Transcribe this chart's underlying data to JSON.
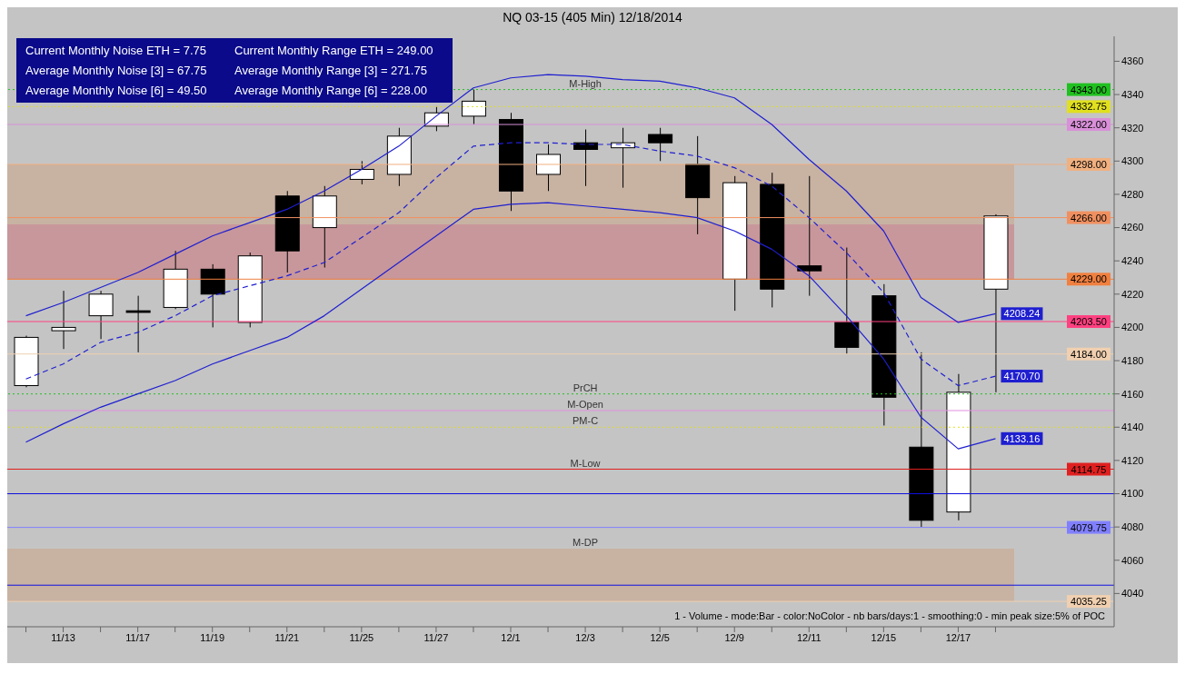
{
  "chart_data": {
    "type": "candlestick",
    "title": "NQ 03-15 (405 Min)  12/18/2014",
    "categories": [
      null,
      "11/13",
      null,
      "11/17",
      null,
      "11/19",
      null,
      "11/21",
      null,
      "11/25",
      null,
      "11/27",
      null,
      "12/1",
      null,
      "12/3",
      null,
      "12/5",
      null,
      "12/9",
      null,
      "12/11",
      null,
      "12/15",
      null,
      "12/17",
      null
    ],
    "ohlc": [
      [
        4165,
        4195,
        4164,
        4194
      ],
      [
        4198,
        4222,
        4187,
        4200
      ],
      [
        4207,
        4222,
        4193,
        4220
      ],
      [
        4210,
        4219,
        4185,
        4209
      ],
      [
        4212,
        4246,
        4211,
        4235
      ],
      [
        4235,
        4238,
        4200,
        4220
      ],
      [
        4203,
        4245,
        4200,
        4243
      ],
      [
        4279,
        4282,
        4233,
        4246
      ],
      [
        4260,
        4285,
        4236,
        4279
      ],
      [
        4289,
        4300,
        4286,
        4295
      ],
      [
        4292,
        4320,
        4285,
        4315
      ],
      [
        4321,
        4333,
        4318,
        4329
      ],
      [
        4327,
        4343,
        4322,
        4336
      ],
      [
        4325,
        4329,
        4270,
        4282
      ],
      [
        4292,
        4310,
        4282,
        4304
      ],
      [
        4311,
        4319,
        4285,
        4307
      ],
      [
        4308,
        4320,
        4284,
        4311
      ],
      [
        4316,
        4320,
        4300,
        4311
      ],
      [
        4298,
        4315,
        4256,
        4278
      ],
      [
        4229,
        4291,
        4210,
        4287
      ],
      [
        4286,
        4293,
        4212,
        4223
      ],
      [
        4237,
        4291,
        4219,
        4234
      ],
      [
        4203,
        4248,
        4184,
        4188
      ],
      [
        4219,
        4226,
        4141,
        4158
      ],
      [
        4128,
        4185,
        4080,
        4084
      ],
      [
        4089,
        4172,
        4084,
        4161
      ],
      [
        4223,
        4268,
        4161,
        4267
      ]
    ],
    "colors": [
      "#ffffff",
      "#ffffff",
      "#ffffff",
      "#000000",
      "#ffffff",
      "#000000",
      "#ffffff",
      "#000000",
      "#ffffff",
      "#ffffff",
      "#ffffff",
      "#ffffff",
      "#ffffff",
      "#000000",
      "#ffffff",
      "#000000",
      "#ffffff",
      "#000000",
      "#000000",
      "#ffffff",
      "#000000",
      "#000000",
      "#000000",
      "#000000",
      "#000000",
      "#ffffff",
      "#ffffff"
    ],
    "series": [
      {
        "type": "line",
        "color": "#1f1fd0",
        "line_style": "solid",
        "values": [
          4207,
          4215,
          4224,
          4233,
          4244,
          4255,
          4263,
          4271,
          4282,
          4295,
          4309,
          4327,
          4344,
          4350,
          4352,
          4351,
          4349,
          4348,
          4344,
          4338,
          4322,
          4301,
          4282,
          4258,
          4218,
          4203,
          4208.24
        ],
        "value_labels": [
          null,
          null,
          null,
          null,
          null,
          null,
          null,
          null,
          null,
          null,
          null,
          null,
          null,
          null,
          null,
          null,
          null,
          null,
          null,
          null,
          null,
          null,
          null,
          null,
          null,
          null,
          "4208.24"
        ]
      },
      {
        "type": "line",
        "color": "#1f1fd0",
        "line_style": "dashed",
        "values": [
          4169,
          4178,
          4191,
          4197,
          4207,
          4219,
          4225,
          4231,
          4239,
          4254,
          4269,
          4290,
          4309,
          4311,
          4311,
          4310,
          4310,
          4306,
          4303,
          4296,
          4285,
          4266,
          4245,
          4221,
          4181,
          4165,
          4170.7
        ],
        "value_labels": [
          null,
          null,
          null,
          null,
          null,
          null,
          null,
          null,
          null,
          null,
          null,
          null,
          null,
          null,
          null,
          null,
          null,
          null,
          null,
          null,
          null,
          null,
          null,
          null,
          null,
          null,
          "4170.70"
        ]
      },
      {
        "type": "line",
        "color": "#1f1fd0",
        "line_style": "solid",
        "values": [
          4131,
          4142,
          4152,
          4160,
          4168,
          4178,
          4186,
          4194,
          4207,
          4223,
          4239,
          4255,
          4271,
          4274,
          4275,
          4273,
          4271,
          4269,
          4266,
          4258,
          4247,
          4231,
          4207,
          4181,
          4146,
          4127,
          4133.16
        ],
        "value_labels": [
          null,
          null,
          null,
          null,
          null,
          null,
          null,
          null,
          null,
          null,
          null,
          null,
          null,
          null,
          null,
          null,
          null,
          null,
          null,
          null,
          null,
          null,
          null,
          null,
          null,
          null,
          "4133.16"
        ]
      }
    ],
    "ylim": [
      4020,
      4375
    ],
    "yticks": [
      4040,
      4060,
      4080,
      4100,
      4120,
      4140,
      4160,
      4180,
      4200,
      4220,
      4240,
      4260,
      4280,
      4300,
      4320,
      4340,
      4360
    ],
    "bands": [
      {
        "axis": "y",
        "from": 4229,
        "to": 4298,
        "color": "#c9ae9a"
      },
      {
        "axis": "y",
        "from": 4229,
        "to": 4262,
        "color": "#c8909a"
      },
      {
        "axis": "y",
        "from": 4035.25,
        "to": 4067,
        "color": "#c9ae9a"
      }
    ],
    "ref_lines": [
      {
        "axis": "y",
        "value": 4343,
        "label": "4343.00",
        "color": "#20c020",
        "line_style": "dotted"
      },
      {
        "axis": "y",
        "value": 4332.75,
        "label": "4332.75",
        "color": "#e0e020",
        "line_style": "dotted"
      },
      {
        "axis": "y",
        "value": 4322,
        "label": "4322.00",
        "color": "#d890d8",
        "line_style": "solid"
      },
      {
        "axis": "y",
        "value": 4298,
        "label": "4298.00",
        "color": "#f0b080",
        "line_style": "solid"
      },
      {
        "axis": "y",
        "value": 4266,
        "label": "4266.00",
        "color": "#f09060",
        "line_style": "solid"
      },
      {
        "axis": "y",
        "value": 4229,
        "label": "4229.00",
        "color": "#f08040",
        "line_style": "solid"
      },
      {
        "axis": "y",
        "value": 4203.5,
        "label": "4203.50",
        "color": "#ff4080",
        "line_style": "solid"
      },
      {
        "axis": "y",
        "value": 4184,
        "label": "4184.00",
        "color": "#f0d0b0",
        "line_style": "solid"
      },
      {
        "axis": "y",
        "value": 4160,
        "label": null,
        "color": "#20c020",
        "line_style": "dotted"
      },
      {
        "axis": "y",
        "value": 4150,
        "label": null,
        "color": "#e090e0",
        "line_style": "solid"
      },
      {
        "axis": "y",
        "value": 4140,
        "label": null,
        "color": "#e0e020",
        "line_style": "dotted"
      },
      {
        "axis": "y",
        "value": 4114.75,
        "label": "4114.75",
        "color": "#e02020",
        "line_style": "solid"
      },
      {
        "axis": "y",
        "value": 4100,
        "label": null,
        "color": "#1010e0",
        "line_style": "solid"
      },
      {
        "axis": "y",
        "value": 4079.75,
        "label": "4079.75",
        "color": "#8080ff",
        "line_style": "solid"
      },
      {
        "axis": "y",
        "value": 4045,
        "label": null,
        "color": "#1010e0",
        "line_style": "solid"
      },
      {
        "axis": "y",
        "value": 4035.25,
        "label": "4035.25",
        "color": "#f0d0b0",
        "line_style": "solid"
      }
    ],
    "annotations": [
      "Current Monthly Noise ETH = 7.75",
      "Current Monthly Range ETH = 249.00",
      "Average Monthly Noise [3] = 67.75",
      "Average Monthly Range [3] = 271.75",
      "Average Monthly Noise [6] = 49.50",
      "Average Monthly Range [6] = 228.00",
      "1 - Volume - mode:Bar - color:NoColor - nb bars/days:1 - smoothing:0 - min peak size:5% of POC",
      {
        "text": "M-High",
        "x": "12/3",
        "y": 4343
      },
      {
        "text": "PrCH",
        "x": "12/3",
        "y": 4160
      },
      {
        "text": "M-Open",
        "x": "12/3",
        "y": 4150
      },
      {
        "text": "PM-C",
        "x": "12/3",
        "y": 4140
      },
      {
        "text": "M-Low",
        "x": "12/3",
        "y": 4114.75
      },
      {
        "text": "M-DP",
        "x": "12/3",
        "y": 4067
      }
    ]
  }
}
